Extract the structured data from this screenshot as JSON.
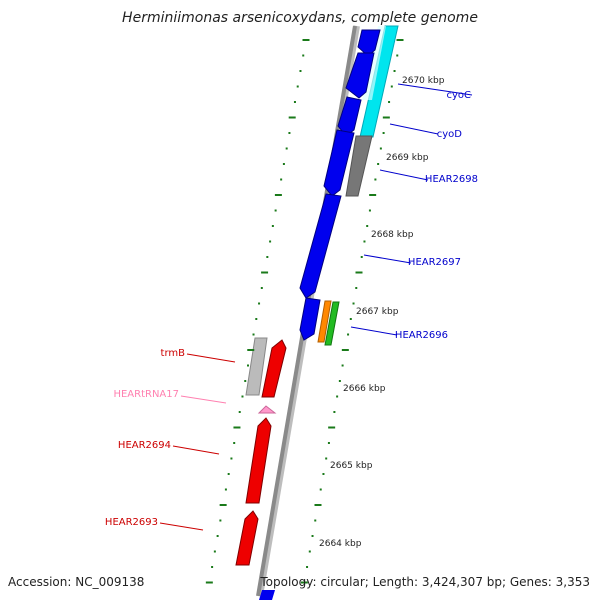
{
  "title": "Herminiimonas arsenicoxydans, complete genome",
  "footer": {
    "accession": "Accession: NC_009138",
    "summary": "Topology: circular; Length: 3,424,307 bp; Genes: 3,353"
  },
  "colors": {
    "cds_plus": "#0000ee",
    "cds_minus": "#ee0000",
    "trna": "#ff99cc",
    "grey_feature": "#777777",
    "light_grey_feature": "#bbbbbb",
    "cyan_feature": "#00e5ee",
    "orange_feature": "#ff8800",
    "green_feature": "#22bb22",
    "tick": "#1a7a1a",
    "backbone": "#8a8a8a",
    "label_plus": "#0000cc",
    "label_minus": "#cc0000",
    "label_trna": "#ff80b0"
  },
  "scale": {
    "ticks": [
      {
        "label": "2670 kbp"
      },
      {
        "label": "2669 kbp"
      },
      {
        "label": "2668 kbp"
      },
      {
        "label": "2667 kbp"
      },
      {
        "label": "2666 kbp"
      },
      {
        "label": "2665 kbp"
      },
      {
        "label": "2664 kbp"
      }
    ]
  },
  "gene_labels": [
    {
      "text": "cyoC",
      "strand": "plus"
    },
    {
      "text": "cyoD",
      "strand": "plus"
    },
    {
      "text": "HEAR2698",
      "strand": "plus"
    },
    {
      "text": "HEAR2697",
      "strand": "plus"
    },
    {
      "text": "HEAR2696",
      "strand": "plus"
    },
    {
      "text": "trmB",
      "strand": "minus"
    },
    {
      "text": "HEARtRNA17",
      "strand": "trna"
    },
    {
      "text": "HEAR2694",
      "strand": "minus"
    },
    {
      "text": "HEAR2693",
      "strand": "minus"
    }
  ]
}
